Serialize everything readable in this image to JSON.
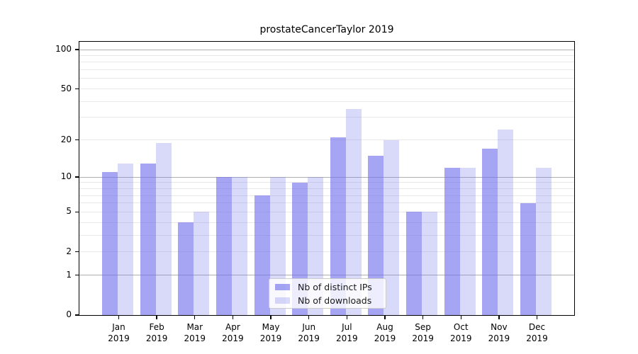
{
  "title": "prostateCancerTaylor 2019",
  "colors": {
    "bar_dark": "rgba(110,110,235,0.62)",
    "bar_light": "rgba(110,110,235,0.26)",
    "major_grid": "#b0b0b0",
    "minor_grid": "#e8e8e8",
    "axis": "#000000",
    "legend_bg": "rgba(255,255,255,0.8)",
    "legend_border": "#cccccc"
  },
  "y_axis": {
    "tick_values": [
      100,
      50,
      20,
      10,
      5,
      2,
      1,
      0
    ],
    "major_gridline_values": [
      1,
      10,
      100
    ],
    "minor_gridline_values": [
      2,
      3,
      4,
      5,
      6,
      7,
      8,
      9,
      20,
      30,
      40,
      50,
      60,
      70,
      80,
      90
    ]
  },
  "legend": {
    "entries": [
      "Nb of distinct IPs",
      "Nb of downloads"
    ]
  },
  "chart_data": {
    "type": "bar",
    "title": "prostateCancerTaylor 2019",
    "categories": [
      "Jan 2019",
      "Feb 2019",
      "Mar 2019",
      "Apr 2019",
      "May 2019",
      "Jun 2019",
      "Jul 2019",
      "Aug 2019",
      "Sep 2019",
      "Oct 2019",
      "Nov 2019",
      "Dec 2019"
    ],
    "series": [
      {
        "name": "Nb of distinct IPs",
        "values": [
          11,
          13,
          4,
          10,
          7,
          9,
          21,
          15,
          5,
          12,
          17,
          6
        ]
      },
      {
        "name": "Nb of downloads",
        "values": [
          13,
          19,
          5,
          10,
          10,
          10,
          35,
          20,
          5,
          12,
          24,
          12
        ]
      }
    ],
    "xlabel": "",
    "ylabel": "",
    "yscale": "log1p",
    "ylim": [
      0,
      114
    ],
    "ytick_labels": [
      "100",
      "50",
      "20",
      "10",
      "5",
      "2",
      "1",
      "0"
    ],
    "grid": true,
    "legend_position": "bottom-center-inside"
  }
}
